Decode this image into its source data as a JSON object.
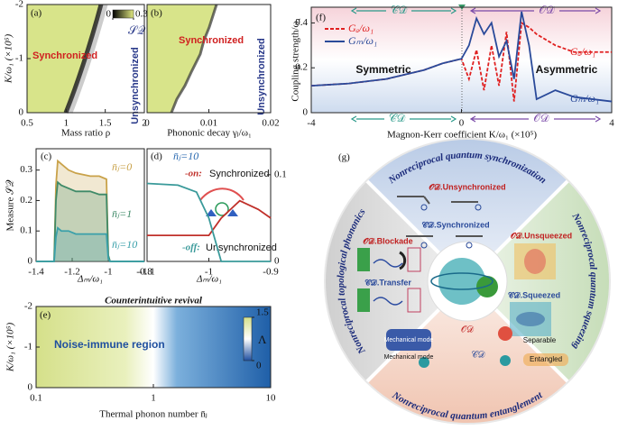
{
  "panels": {
    "a": {
      "label": "(a)",
      "region": "Synchronized",
      "region2": "Unsynchronized",
      "xlabel": "Mass ratio ρ",
      "ylabel": "K/ω₁ (×10⁵)",
      "xlim": [
        0.5,
        2
      ],
      "xticks": [
        0.5,
        1,
        1.5,
        2
      ],
      "ylim": [
        0,
        -2
      ],
      "yticks": [
        -2,
        -1,
        0
      ],
      "colorbar": {
        "ticks": [
          0,
          0.3
        ],
        "label": "𝒮𝒬"
      }
    },
    "b": {
      "label": "(b)",
      "region": "Synchronized",
      "region2": "Unsynchronized",
      "xlabel": "Phononic decay γⱼ/ω₁",
      "xlim": [
        0,
        0.02
      ],
      "xticks": [
        0,
        0.01,
        0.02
      ]
    },
    "c": {
      "label": "(c)",
      "ylabel": "Measure 𝒮𝒬",
      "xlabel": "Δₘ/ω₁",
      "xlim": [
        -1.4,
        -0.8
      ],
      "xticks": [
        -1.4,
        -1.2,
        -1,
        -0.8
      ],
      "ylim": [
        0,
        0.37
      ],
      "yticks": [
        0,
        0.1,
        0.2,
        0.3
      ],
      "series": [
        {
          "name": "n̄ⱼ=0",
          "color": "#c9a24a",
          "x": [
            -1.4,
            -1.3,
            -1.29,
            -1.28,
            -1.26,
            -1.22,
            -1.18,
            -1.1,
            -1.05,
            -1.01,
            -1.0,
            -0.99,
            -0.8
          ],
          "values": [
            0,
            0,
            0.25,
            0.33,
            0.32,
            0.3,
            0.29,
            0.28,
            0.28,
            0.27,
            0.02,
            0,
            0
          ]
        },
        {
          "name": "n̄ⱼ=1",
          "color": "#3f8a68",
          "x": [
            -1.4,
            -1.3,
            -1.29,
            -1.28,
            -1.26,
            -1.22,
            -1.18,
            -1.1,
            -1.05,
            -1.01,
            -1.0,
            -0.99,
            -0.8
          ],
          "values": [
            0,
            0,
            0.2,
            0.26,
            0.25,
            0.24,
            0.23,
            0.23,
            0.22,
            0.22,
            0.02,
            0,
            0
          ]
        },
        {
          "name": "n̄ⱼ=10",
          "color": "#3aa0aa",
          "x": [
            -1.4,
            -1.3,
            -1.29,
            -1.28,
            -1.26,
            -1.22,
            -1.18,
            -1.1,
            -1.05,
            -1.01,
            -1.0,
            -0.99,
            -0.8
          ],
          "values": [
            0,
            0,
            0.08,
            0.11,
            0.1,
            0.1,
            0.09,
            0.09,
            0.09,
            0.09,
            0.01,
            0,
            0
          ]
        }
      ]
    },
    "d": {
      "label": "(d)",
      "note": "n̄ⱼ=10",
      "xlabel": "Δₘ/ω₁",
      "on_text": "Synchronized",
      "off_text": "Unsynchronized",
      "xlim": [
        -1.1,
        -0.9
      ],
      "xticks": [
        -1.1,
        -1,
        -0.9
      ],
      "ylim": [
        0,
        0.13
      ],
      "yticks": [
        0,
        0.1
      ],
      "y_axis_side": "right",
      "series": [
        {
          "name": "-on:",
          "color": "#c0302a",
          "x": [
            -1.1,
            -1.05,
            -1.0,
            -0.98,
            -0.95,
            -0.92,
            -0.9
          ],
          "values": [
            0.03,
            0.03,
            0.03,
            0.05,
            0.07,
            0.06,
            0.05
          ]
        },
        {
          "name": "-off:",
          "color": "#3a9a9a",
          "x": [
            -1.1,
            -1.05,
            -1.02,
            -1.0,
            -0.98,
            -0.95,
            -0.9
          ],
          "values": [
            0.09,
            0.088,
            0.08,
            0.05,
            0,
            0,
            0
          ]
        }
      ]
    },
    "e": {
      "label": "(e)",
      "title": "Counterintuitive revival",
      "region": "Noise-immune region",
      "xlabel": "Thermal phonon number n̄ⱼ",
      "ylabel": "K/ω₁ (×10⁵)",
      "xlim": [
        0.1,
        10
      ],
      "xticks": [
        0.1,
        1,
        10
      ],
      "xlog": true,
      "ylim": [
        0,
        -2
      ],
      "yticks": [
        -2,
        -1,
        0
      ],
      "colorbar": {
        "ticks": [
          0,
          1.5
        ],
        "label": "Λ"
      }
    },
    "f": {
      "label": "(f)",
      "ylabel": "Coupling strength/ω₁",
      "xlabel": "Magnon-Kerr coefficient K/ω₁ (×10⁵)",
      "cd": "𝒞𝒟",
      "od": "𝒪𝒟",
      "left_text": "Symmetric",
      "right_text": "Asymmetric",
      "xlim": [
        -4,
        4
      ],
      "xticks": [
        -4,
        0,
        4
      ],
      "ylim": [
        0,
        0.47
      ],
      "yticks": [
        0,
        0.2,
        0.4
      ],
      "series": [
        {
          "name": "Gₐ/ω₁",
          "color": "#e02020",
          "dash": true,
          "x": [
            -4,
            -3,
            -2,
            -1,
            -0.5,
            0,
            0.2,
            0.4,
            0.6,
            0.8,
            1,
            1.2,
            1.4,
            1.6,
            1.8,
            2,
            2.5,
            3,
            3.5,
            4
          ],
          "values": [
            0.12,
            0.13,
            0.15,
            0.19,
            0.22,
            0.24,
            0.15,
            0.28,
            0.1,
            0.3,
            0.12,
            0.36,
            0.05,
            0.4,
            0.38,
            0.35,
            0.3,
            0.27,
            0.27,
            0.27
          ]
        },
        {
          "name": "Gₘ/ω₁",
          "color": "#2a4a9a",
          "x": [
            -4,
            -3,
            -2,
            -1,
            -0.5,
            0,
            0.2,
            0.4,
            0.6,
            0.8,
            1,
            1.2,
            1.4,
            1.6,
            1.8,
            2,
            2.5,
            3,
            3.5,
            4
          ],
          "values": [
            0.12,
            0.13,
            0.15,
            0.19,
            0.22,
            0.24,
            0.3,
            0.42,
            0.35,
            0.4,
            0.25,
            0.32,
            0.15,
            0.45,
            0.3,
            0.06,
            0.1,
            0.07,
            0.06,
            0.05
          ]
        }
      ]
    },
    "g": {
      "label": "(g)",
      "titles": [
        "Nonreciprocal quantum synchronization",
        "Nonreciprocal quantum squeezing",
        "Nonreciprocal quantum entanglement",
        "Nonreciprocal topological phononics"
      ],
      "items": [
        "𝒪𝒟.Unsynchronized",
        "𝒞𝒟.Synchronized",
        "𝒪𝒟.Unsqueezed",
        "𝒞𝒟.Squeezed",
        "𝒪𝒟.Blockade",
        "𝒞𝒟.Transfer",
        "Mechanical mode",
        "Mechanical mode",
        "𝒪𝒟",
        "𝒞𝒟",
        "Separable",
        "Entangled"
      ]
    }
  }
}
